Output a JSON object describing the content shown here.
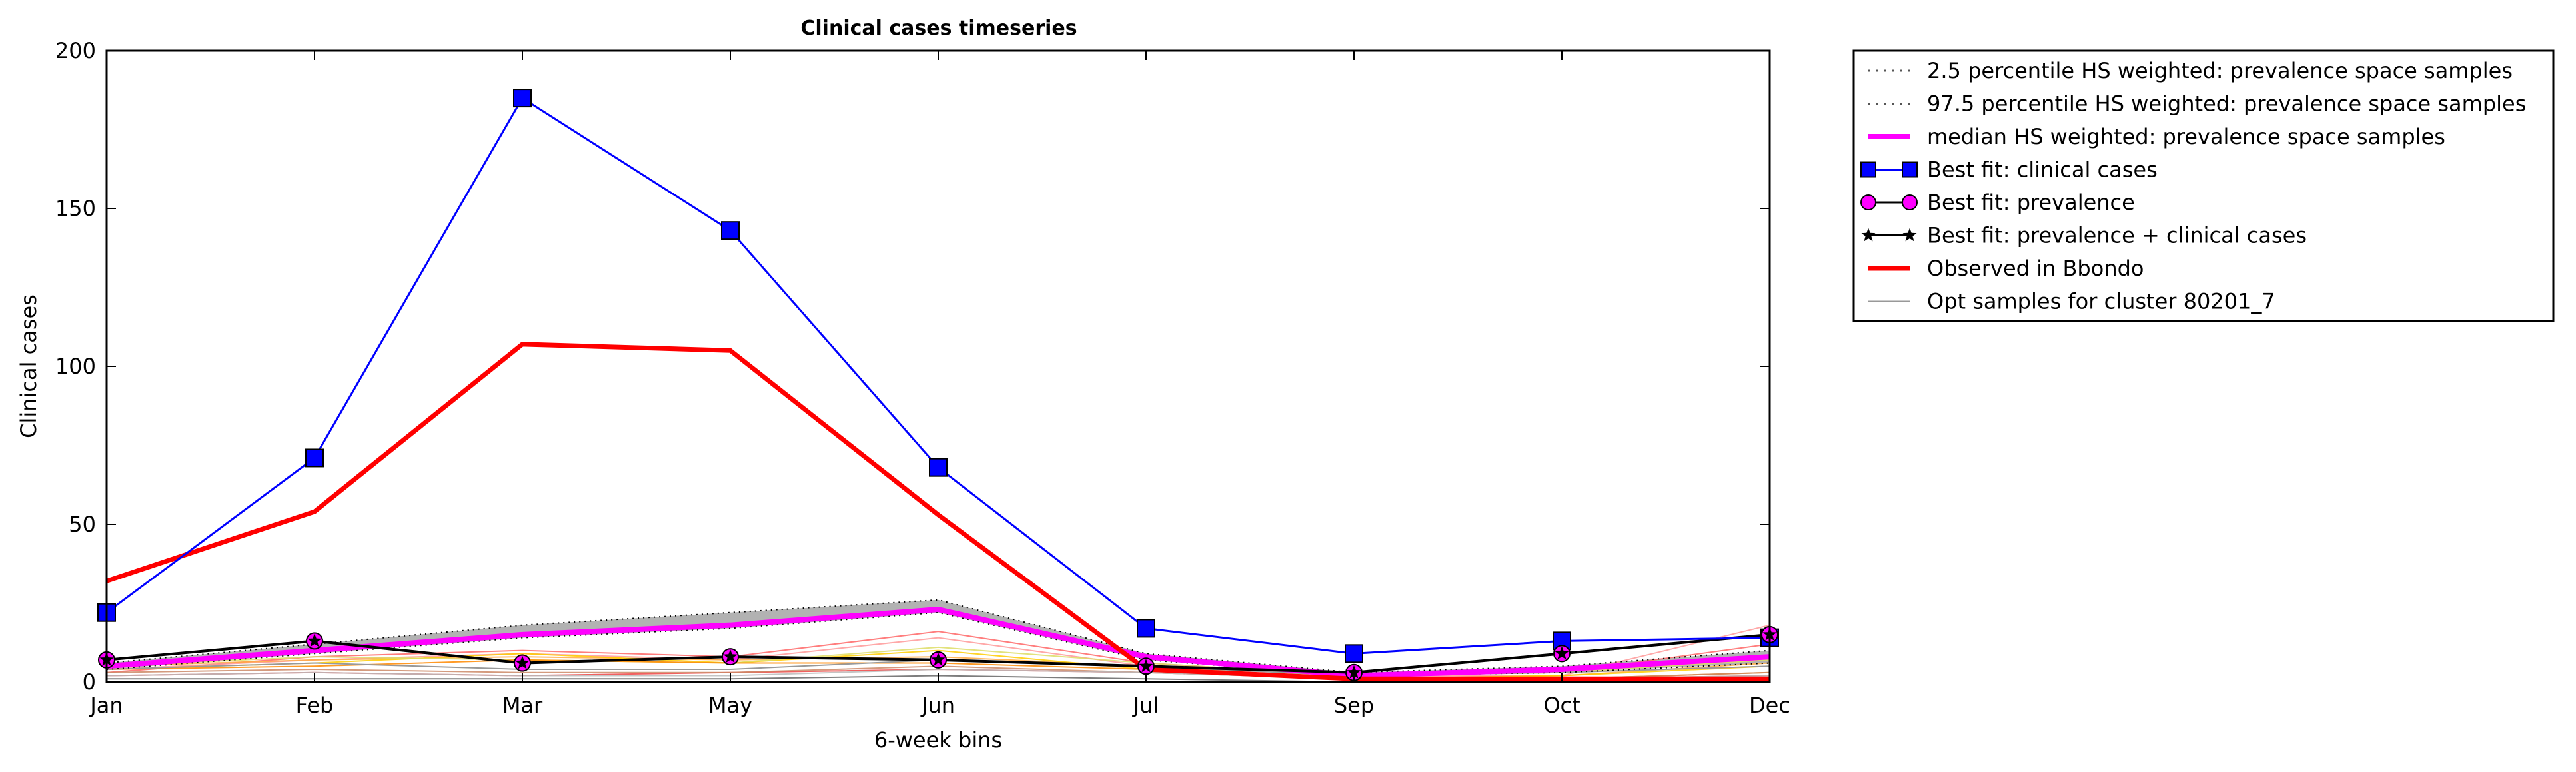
{
  "chart_data": {
    "type": "line",
    "title": "Clinical cases timeseries",
    "xlabel": "6-week bins",
    "ylabel": "Clinical cases",
    "x_tick_labels": [
      "Jan",
      "Feb",
      "Mar",
      "May",
      "Jun",
      "Jul",
      "Sep",
      "Oct",
      "Dec"
    ],
    "y_ticks": [
      0,
      50,
      100,
      150,
      200
    ],
    "ylim": [
      0,
      200
    ],
    "xlim": [
      0,
      8
    ],
    "legend_position": "outside-right-top",
    "series": [
      {
        "name": "2.5 percentile HS weighted: prevalence space samples",
        "style": "dotted",
        "color": "#000000",
        "values": [
          4,
          9,
          14,
          17,
          22,
          7,
          2,
          3,
          6
        ]
      },
      {
        "name": "97.5 percentile HS weighted: prevalence space samples",
        "style": "dotted",
        "color": "#000000",
        "values": [
          6,
          12,
          18,
          22,
          26,
          9,
          3,
          5,
          10
        ]
      },
      {
        "name": "median HS weighted: prevalence space samples",
        "style": "thick",
        "color": "#ff00ff",
        "values": [
          5,
          10,
          15,
          18,
          23,
          8,
          2,
          4,
          8
        ]
      },
      {
        "name": "Best fit: clinical cases",
        "marker": "square",
        "color": "#0000ff",
        "values": [
          22,
          71,
          185,
          143,
          68,
          17,
          9,
          13,
          14
        ]
      },
      {
        "name": "Best fit: prevalence",
        "marker": "circle",
        "color": "#ff00ff",
        "values": [
          7,
          13,
          6,
          8,
          7,
          5,
          3,
          9,
          15
        ]
      },
      {
        "name": "Best fit: prevalence + clinical cases",
        "marker": "star",
        "color": "#000000",
        "values": [
          7,
          13,
          6,
          8,
          7,
          5,
          3,
          9,
          15
        ]
      },
      {
        "name": "Observed in Bbondo",
        "style": "thick",
        "color": "#ff0000",
        "values": [
          32,
          54,
          107,
          105,
          53,
          4,
          1,
          1,
          1
        ]
      },
      {
        "name": "Opt samples for cluster 80201_7",
        "style": "thin",
        "color": "#999999",
        "values": [
          4,
          6,
          4,
          4,
          7,
          5,
          2,
          3,
          5
        ]
      }
    ],
    "sample_lines": [
      {
        "color": "#ff6666",
        "values": [
          3,
          8,
          10,
          8,
          16,
          6,
          2,
          3,
          12
        ]
      },
      {
        "color": "#ff9999",
        "values": [
          4,
          7,
          9,
          7,
          14,
          5,
          2,
          2,
          18
        ]
      },
      {
        "color": "#ffaa44",
        "values": [
          5,
          7,
          8,
          7,
          8,
          5,
          1,
          2,
          6
        ]
      },
      {
        "color": "#ffcc00",
        "values": [
          4,
          6,
          9,
          6,
          10,
          4,
          1,
          2,
          5
        ]
      },
      {
        "color": "#dddd66",
        "values": [
          5,
          8,
          7,
          6,
          11,
          6,
          2,
          3,
          7
        ]
      },
      {
        "color": "#ff8800",
        "values": [
          4,
          5,
          7,
          6,
          6,
          4,
          1,
          1,
          3
        ]
      },
      {
        "color": "#ee4444",
        "values": [
          2,
          3,
          2,
          3,
          4,
          3,
          1,
          1,
          2
        ]
      },
      {
        "color": "#cc8866",
        "values": [
          3,
          4,
          3,
          3,
          5,
          3,
          1,
          1,
          3
        ]
      },
      {
        "color": "#bbbbbb",
        "values": [
          2,
          3,
          2,
          2,
          4,
          3,
          1,
          1,
          2
        ]
      },
      {
        "color": "#666666",
        "values": [
          1,
          1,
          1,
          1,
          2,
          1,
          0,
          0,
          1
        ]
      }
    ]
  }
}
